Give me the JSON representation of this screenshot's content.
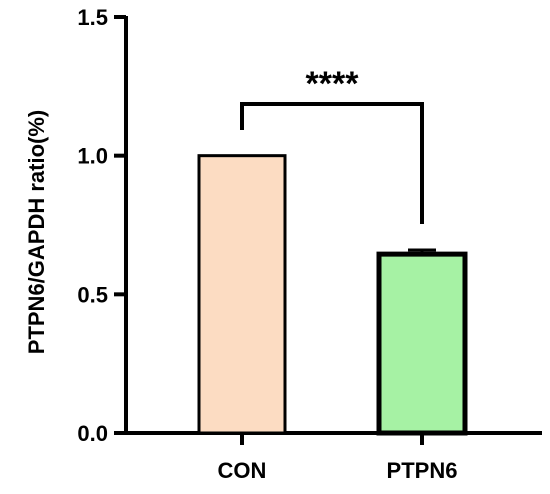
{
  "chart_data": {
    "type": "bar",
    "title": "",
    "xlabel": "",
    "ylabel": "PTPN6/GAPDH ratio(%)",
    "categories": [
      "CON",
      "PTPN6"
    ],
    "values": [
      1.0,
      0.645
    ],
    "error": [
      0.0,
      0.015
    ],
    "ylim": [
      0,
      1.5
    ],
    "yticks": [
      "0.0",
      "0.5",
      "1.0",
      "1.5"
    ],
    "grid": false,
    "legend": "none",
    "significance": {
      "label": "****",
      "between": [
        "CON",
        "PTPN6"
      ]
    },
    "colors": {
      "CON": "#fcdcc2",
      "PTPN6": "#a6f2a4",
      "outline": "#000000"
    }
  }
}
